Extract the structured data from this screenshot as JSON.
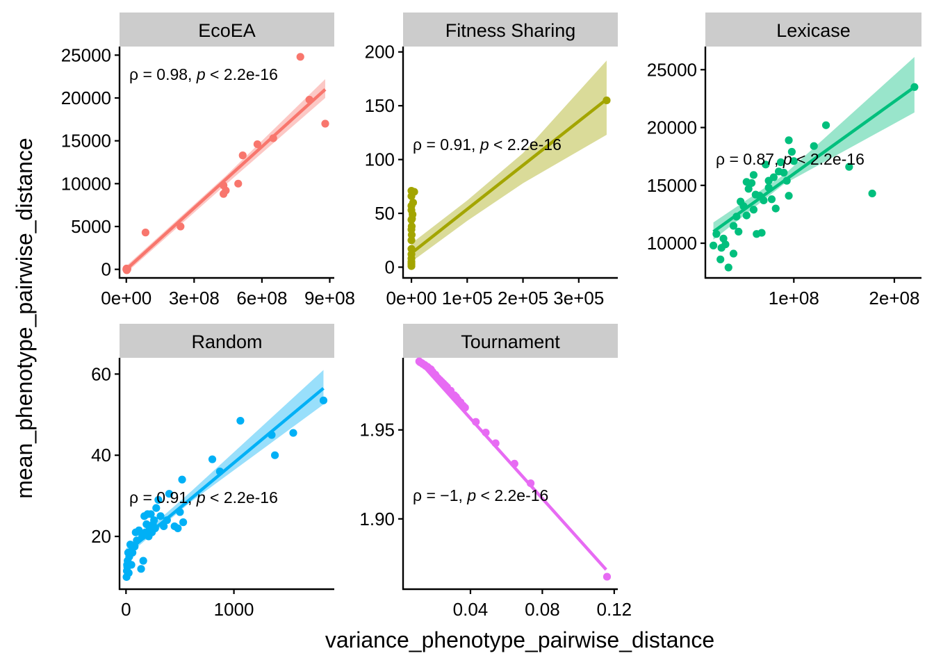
{
  "figure": {
    "x_title": "variance_phenotype_pairwise_distance",
    "y_title": "mean_phenotype_pairwise_distance",
    "strip_color": "#cccccc"
  },
  "chart_data": [
    {
      "type": "scatter",
      "panel": "EcoEA",
      "color": "#f8766d",
      "annotation": {
        "rho_text": "ρ = 0.98, ",
        "p_symbol": "p",
        "p_text": " < 2.2e-16"
      },
      "xlim": [
        -30000000.0,
        920000000.0
      ],
      "ylim": [
        -1000,
        26000
      ],
      "xticks": [
        0,
        300000000.0,
        600000000.0,
        900000000.0
      ],
      "xtick_labels": [
        "0e+00",
        "3e+08",
        "6e+08",
        "9e+08"
      ],
      "yticks": [
        0,
        5000,
        10000,
        15000,
        20000,
        25000
      ],
      "ytick_labels": [
        "0",
        "5000",
        "10000",
        "15000",
        "20000",
        "25000"
      ],
      "points": [
        [
          0,
          0
        ],
        [
          2000000.0,
          -100
        ],
        [
          5000000.0,
          50
        ],
        [
          1000000.0,
          100
        ],
        [
          3000000.0,
          -50
        ],
        [
          85000000.0,
          4300
        ],
        [
          240000000.0,
          5000
        ],
        [
          430000000.0,
          8800
        ],
        [
          430000000.0,
          9800
        ],
        [
          440000000.0,
          9200
        ],
        [
          495000000.0,
          10000
        ],
        [
          515000000.0,
          13300
        ],
        [
          580000000.0,
          14600
        ],
        [
          650000000.0,
          15300
        ],
        [
          770000000.0,
          24800
        ],
        [
          810000000.0,
          19800
        ],
        [
          880000000.0,
          17000
        ]
      ],
      "fit": {
        "x0": 0,
        "y0": 0,
        "x1": 880000000.0,
        "y1": 21000
      },
      "band": [
        [
          0,
          -400,
          400
        ],
        [
          440000000.0,
          9900,
          10900
        ],
        [
          880000000.0,
          20000,
          22200
        ]
      ]
    },
    {
      "type": "scatter",
      "panel": "Fitness Sharing",
      "color": "#a3a500",
      "annotation": {
        "rho_text": "ρ = 0.91, ",
        "p_symbol": "p",
        "p_text": " < 2.2e-16"
      },
      "xlim": [
        -15000,
        370000
      ],
      "ylim": [
        -10,
        205
      ],
      "xticks": [
        0,
        100000,
        200000,
        300000
      ],
      "xtick_labels": [
        "0e+00",
        "1e+05",
        "2e+05",
        "3e+05"
      ],
      "yticks": [
        0,
        50,
        100,
        150,
        200
      ],
      "ytick_labels": [
        "0",
        "50",
        "100",
        "150",
        "200"
      ],
      "points": [
        [
          0,
          1
        ],
        [
          0,
          3
        ],
        [
          0,
          5
        ],
        [
          0,
          8
        ],
        [
          0,
          12
        ],
        [
          0,
          17
        ],
        [
          0,
          25
        ],
        [
          0,
          35
        ],
        [
          0,
          44
        ],
        [
          0,
          53
        ],
        [
          0,
          57
        ],
        [
          0,
          66
        ],
        [
          0,
          71
        ],
        [
          5000,
          70
        ],
        [
          3000,
          60
        ],
        [
          2000,
          49
        ],
        [
          1000,
          45
        ],
        [
          500,
          38
        ],
        [
          500,
          30
        ],
        [
          350000,
          155
        ]
      ],
      "fit": {
        "x0": 0,
        "y0": 13,
        "x1": 350000,
        "y1": 156
      },
      "band": [
        [
          0,
          5,
          22
        ],
        [
          100000,
          43,
          62
        ],
        [
          200000,
          78,
          106
        ],
        [
          350000,
          123,
          192
        ]
      ]
    },
    {
      "type": "scatter",
      "panel": "Lexicase",
      "color": "#00bf7d",
      "annotation": {
        "rho_text": "ρ = 0.87, ",
        "p_symbol": "p",
        "p_text": " < 2.2e-16"
      },
      "xlim": [
        12000000.0,
        227000000.0
      ],
      "ylim": [
        7000,
        27000
      ],
      "xticks": [
        100000000.0,
        200000000.0
      ],
      "xtick_labels": [
        "1e+08",
        "2e+08"
      ],
      "yticks": [
        10000,
        15000,
        20000,
        25000
      ],
      "ytick_labels": [
        "10000",
        "15000",
        "20000",
        "25000"
      ],
      "points": [
        [
          20000000.0,
          9800
        ],
        [
          23000000.0,
          10800
        ],
        [
          27000000.0,
          8600
        ],
        [
          28000000.0,
          9600
        ],
        [
          30000000.0,
          10400
        ],
        [
          32000000.0,
          9900
        ],
        [
          35000000.0,
          7900
        ],
        [
          40000000.0,
          9100
        ],
        [
          40000000.0,
          11500
        ],
        [
          43000000.0,
          12300
        ],
        [
          45000000.0,
          11000
        ],
        [
          47000000.0,
          13600
        ],
        [
          50000000.0,
          13200
        ],
        [
          53000000.0,
          12400
        ],
        [
          53000000.0,
          15300
        ],
        [
          55000000.0,
          14700
        ],
        [
          58000000.0,
          15200
        ],
        [
          60000000.0,
          12900
        ],
        [
          60000000.0,
          15900
        ],
        [
          62000000.0,
          14200
        ],
        [
          63000000.0,
          10800
        ],
        [
          66000000.0,
          14100
        ],
        [
          68000000.0,
          10900
        ],
        [
          70000000.0,
          13700
        ],
        [
          72000000.0,
          16800
        ],
        [
          75000000.0,
          15400
        ],
        [
          75000000.0,
          14800
        ],
        [
          78000000.0,
          13800
        ],
        [
          80000000.0,
          15700
        ],
        [
          82000000.0,
          13000
        ],
        [
          85000000.0,
          16200
        ],
        [
          87000000.0,
          17000
        ],
        [
          90000000.0,
          16100
        ],
        [
          93000000.0,
          15400
        ],
        [
          95000000.0,
          14100
        ],
        [
          95000000.0,
          18900
        ],
        [
          98000000.0,
          17900
        ],
        [
          100000000.0,
          17100
        ],
        [
          120000000.0,
          18400
        ],
        [
          132000000.0,
          20200
        ],
        [
          155000000.0,
          16600
        ],
        [
          178000000.0,
          14300
        ],
        [
          220000000.0,
          23500
        ]
      ],
      "fit": {
        "x0": 20000000.0,
        "y0": 11000,
        "x1": 220000000.0,
        "y1": 23500
      },
      "band": [
        [
          20000000.0,
          10300,
          11800
        ],
        [
          90000000.0,
          15100,
          15900
        ],
        [
          220000000.0,
          21300,
          26100
        ]
      ]
    },
    {
      "type": "scatter",
      "panel": "Random",
      "color": "#00b0f6",
      "annotation": {
        "rho_text": "ρ = 0.91, ",
        "p_symbol": "p",
        "p_text": " < 2.2e-16"
      },
      "xlim": [
        -60,
        1930
      ],
      "ylim": [
        7,
        64
      ],
      "xticks": [
        0,
        1000
      ],
      "xtick_labels": [
        "0",
        "1000"
      ],
      "yticks": [
        20,
        40,
        60
      ],
      "ytick_labels": [
        "20",
        "40",
        "60"
      ],
      "points": [
        [
          5,
          10
        ],
        [
          8,
          11.5
        ],
        [
          10,
          13
        ],
        [
          12,
          12.5
        ],
        [
          15,
          14
        ],
        [
          20,
          16
        ],
        [
          25,
          11
        ],
        [
          30,
          15
        ],
        [
          40,
          18
        ],
        [
          50,
          13
        ],
        [
          60,
          16
        ],
        [
          80,
          17.5
        ],
        [
          90,
          21
        ],
        [
          100,
          19
        ],
        [
          120,
          21.5
        ],
        [
          140,
          12
        ],
        [
          150,
          20
        ],
        [
          160,
          14
        ],
        [
          170,
          25
        ],
        [
          180,
          21
        ],
        [
          190,
          23
        ],
        [
          200,
          25.5
        ],
        [
          210,
          20
        ],
        [
          220,
          22
        ],
        [
          230,
          25.5
        ],
        [
          240,
          21
        ],
        [
          250,
          23
        ],
        [
          260,
          24
        ],
        [
          270,
          22
        ],
        [
          280,
          27
        ],
        [
          300,
          29
        ],
        [
          320,
          25
        ],
        [
          350,
          22.5
        ],
        [
          380,
          24
        ],
        [
          400,
          30.5
        ],
        [
          450,
          22.5
        ],
        [
          480,
          22
        ],
        [
          500,
          26
        ],
        [
          520,
          34
        ],
        [
          530,
          23.5
        ],
        [
          800,
          39
        ],
        [
          870,
          36
        ],
        [
          1060,
          48.5
        ],
        [
          1350,
          45
        ],
        [
          1380,
          40
        ],
        [
          1550,
          45.5
        ],
        [
          1830,
          53.5
        ]
      ],
      "fit": {
        "x0": 0,
        "y0": 16,
        "x1": 1830,
        "y1": 56.5
      },
      "band": [
        [
          0,
          15,
          17
        ],
        [
          600,
          28.5,
          31
        ],
        [
          1830,
          52.5,
          61
        ]
      ]
    },
    {
      "type": "scatter",
      "panel": "Tournament",
      "color": "#e76bf3",
      "annotation": {
        "rho_text": "ρ = −1, ",
        "p_symbol": "p",
        "p_text": " < 2.2e-16"
      },
      "xlim": [
        0.0025,
        0.122
      ],
      "ylim": [
        1.8605,
        1.9905
      ],
      "xticks": [
        0.04,
        0.08,
        0.12
      ],
      "xtick_labels": [
        "0.04",
        "0.08",
        "0.12"
      ],
      "yticks": [
        1.9,
        1.95
      ],
      "ytick_labels": [
        "1.90",
        "1.95"
      ],
      "points": [
        [
          0.0115,
          1.9885
        ],
        [
          0.012,
          1.988
        ],
        [
          0.013,
          1.9875
        ],
        [
          0.0135,
          1.987
        ],
        [
          0.0145,
          1.9865
        ],
        [
          0.015,
          1.986
        ],
        [
          0.016,
          1.9855
        ],
        [
          0.0165,
          1.985
        ],
        [
          0.017,
          1.9845
        ],
        [
          0.018,
          1.984
        ],
        [
          0.0185,
          1.983
        ],
        [
          0.019,
          1.9825
        ],
        [
          0.0195,
          1.9815
        ],
        [
          0.0205,
          1.981
        ],
        [
          0.021,
          1.98
        ],
        [
          0.022,
          1.979
        ],
        [
          0.023,
          1.978
        ],
        [
          0.024,
          1.977
        ],
        [
          0.025,
          1.976
        ],
        [
          0.026,
          1.975
        ],
        [
          0.027,
          1.974
        ],
        [
          0.029,
          1.972
        ],
        [
          0.031,
          1.9695
        ],
        [
          0.032,
          1.9685
        ],
        [
          0.033,
          1.967
        ],
        [
          0.0345,
          1.9655
        ],
        [
          0.036,
          1.9635
        ],
        [
          0.037,
          1.9625
        ],
        [
          0.043,
          1.9545
        ],
        [
          0.0485,
          1.9485
        ],
        [
          0.054,
          1.9425
        ],
        [
          0.0645,
          1.931
        ],
        [
          0.0735,
          1.92
        ],
        [
          0.116,
          1.8675
        ]
      ],
      "fit": {
        "x0": 0.0115,
        "y0": 1.9885,
        "x1": 0.1155,
        "y1": 1.8715
      },
      "band": [
        [
          0.0115,
          1.9885,
          1.9885
        ],
        [
          0.1155,
          1.8712,
          1.8718
        ]
      ]
    }
  ]
}
